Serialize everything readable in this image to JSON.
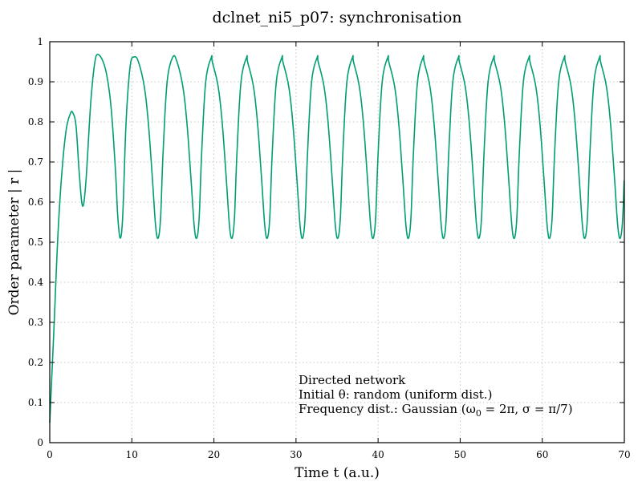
{
  "chart_data": {
    "type": "line",
    "title": "dclnet_ni5_p07: synchronisation",
    "xlabel": "Time t (a.u.)",
    "ylabel": "Order parameter | r |",
    "xlim": [
      0,
      70
    ],
    "ylim": [
      0,
      1
    ],
    "xticks": [
      0,
      10,
      20,
      30,
      40,
      50,
      60,
      70
    ],
    "yticks": [
      0,
      0.1,
      0.2,
      0.3,
      0.4,
      0.5,
      0.6,
      0.7,
      0.8,
      0.9,
      1
    ],
    "xtick_labels": [
      "0",
      "10",
      "20",
      "30",
      "40",
      "50",
      "60",
      "70"
    ],
    "ytick_labels": [
      "0",
      "0.1",
      "0.2",
      "0.3",
      "0.4",
      "0.5",
      "0.6",
      "0.7",
      "0.8",
      "0.9",
      "1"
    ],
    "grid": true,
    "annotation": {
      "lines": [
        "Directed network",
        "Initial θ: random (uniform dist.)"
      ],
      "freq_prefix": "Frequency dist.: Gaussian (ω",
      "freq_sub": "0",
      "freq_suffix": " = 2π, σ = π/7)"
    },
    "series": [
      {
        "color": "#009e73",
        "x": [
          0,
          0.5,
          1.0,
          1.5,
          2.0,
          2.5,
          2.8,
          3.2,
          3.6,
          4.0,
          4.4,
          5.0,
          5.5,
          5.9,
          6.5,
          7.0,
          7.5,
          8.0,
          8.3,
          8.6,
          8.9,
          9.3,
          9.8,
          10.3,
          10.8,
          11.5,
          12.0,
          12.5,
          12.9,
          13.2,
          13.5,
          13.8,
          14.3,
          15.0
        ],
        "y": [
          0.05,
          0.28,
          0.52,
          0.68,
          0.78,
          0.82,
          0.823,
          0.79,
          0.67,
          0.59,
          0.65,
          0.85,
          0.95,
          0.968,
          0.95,
          0.91,
          0.83,
          0.68,
          0.56,
          0.51,
          0.57,
          0.8,
          0.94,
          0.962,
          0.95,
          0.89,
          0.8,
          0.66,
          0.54,
          0.51,
          0.56,
          0.72,
          0.9,
          0.962
        ]
      }
    ]
  }
}
